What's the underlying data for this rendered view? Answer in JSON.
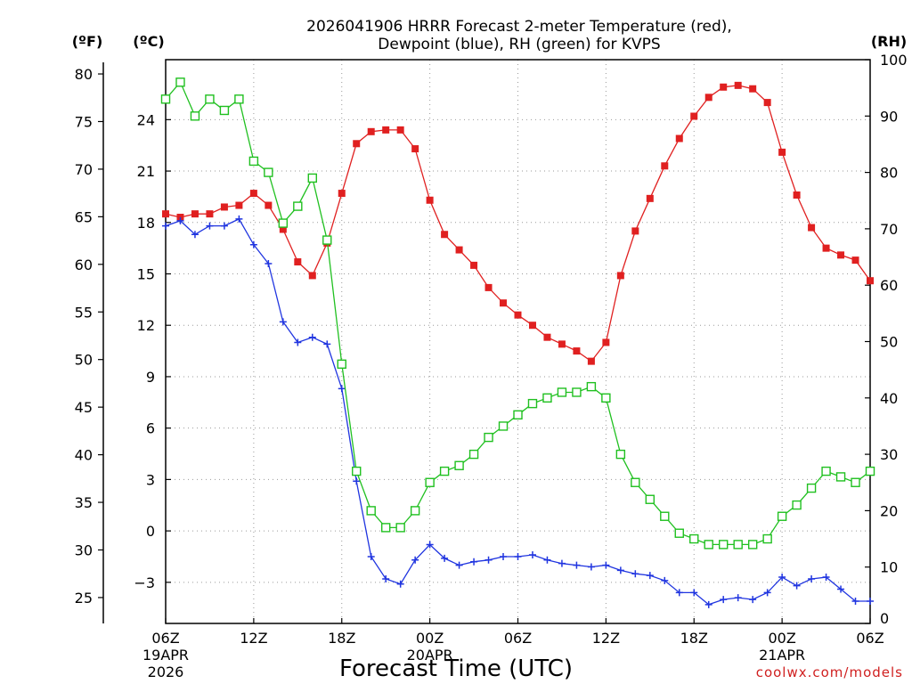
{
  "chart_data": {
    "type": "line",
    "title_line1": "2026041906 HRRR Forecast 2-meter Temperature (red),",
    "title_line2": "Dewpoint (blue), RH (green) for KVPS",
    "xlabel": "Forecast Time (UTC)",
    "credit": "coolwx.com/models",
    "units": {
      "fahrenheit": "(ºF)",
      "celsius": "(ºC)",
      "rh": "(RH)"
    },
    "x_range_hours": [
      0,
      48
    ],
    "celsius_range": [
      -5.4,
      27.5
    ],
    "rh_range": [
      0,
      100
    ],
    "x_ticks": [
      {
        "hour": 0,
        "label": "06Z",
        "sub1": "19APR",
        "sub2": "2026"
      },
      {
        "hour": 6,
        "label": "12Z",
        "sub1": "",
        "sub2": ""
      },
      {
        "hour": 12,
        "label": "18Z",
        "sub1": "",
        "sub2": ""
      },
      {
        "hour": 18,
        "label": "00Z",
        "sub1": "20APR",
        "sub2": ""
      },
      {
        "hour": 24,
        "label": "06Z",
        "sub1": "",
        "sub2": ""
      },
      {
        "hour": 30,
        "label": "12Z",
        "sub1": "",
        "sub2": ""
      },
      {
        "hour": 36,
        "label": "18Z",
        "sub1": "",
        "sub2": ""
      },
      {
        "hour": 42,
        "label": "00Z",
        "sub1": "21APR",
        "sub2": ""
      },
      {
        "hour": 48,
        "label": "06Z",
        "sub1": "",
        "sub2": ""
      }
    ],
    "celsius_ticks": [
      -3,
      0,
      3,
      6,
      9,
      12,
      15,
      18,
      21,
      24
    ],
    "celsius_tick_labels": [
      "−3",
      "0",
      "3",
      "6",
      "9",
      "12",
      "15",
      "18",
      "21",
      "24"
    ],
    "fahrenheit_ticks": [
      25,
      30,
      35,
      40,
      45,
      50,
      55,
      60,
      65,
      70,
      75,
      80
    ],
    "rh_ticks": [
      0,
      10,
      20,
      30,
      40,
      50,
      60,
      70,
      80,
      90,
      100
    ],
    "series": [
      {
        "name": "2-meter Temperature (°C)",
        "axis": "celsius",
        "color": "#e02020",
        "marker": "filled-square",
        "values": [
          18.5,
          18.3,
          18.5,
          18.5,
          18.9,
          19.0,
          19.7,
          19.0,
          17.6,
          15.7,
          14.9,
          16.8,
          19.7,
          22.6,
          23.3,
          23.4,
          23.4,
          22.3,
          19.3,
          17.3,
          16.4,
          15.5,
          14.2,
          13.3,
          12.6,
          12.0,
          11.3,
          10.9,
          10.5,
          9.9,
          11.0,
          14.9,
          17.5,
          19.4,
          21.3,
          22.9,
          24.2,
          25.3,
          25.9,
          26.0,
          25.8,
          25.0,
          22.1,
          19.6,
          17.7,
          16.5,
          16.1,
          15.8,
          14.6
        ]
      },
      {
        "name": "Dewpoint (°C)",
        "axis": "celsius",
        "color": "#2035e0",
        "marker": "plus",
        "values": [
          17.8,
          18.1,
          17.3,
          17.8,
          17.8,
          18.2,
          16.7,
          15.6,
          12.2,
          11.0,
          11.3,
          10.9,
          8.3,
          2.9,
          -1.5,
          -2.8,
          -3.1,
          -1.7,
          -0.8,
          -1.6,
          -2.0,
          -1.8,
          -1.7,
          -1.5,
          -1.5,
          -1.4,
          -1.7,
          -1.9,
          -2.0,
          -2.1,
          -2.0,
          -2.3,
          -2.5,
          -2.6,
          -2.9,
          -3.6,
          -3.6,
          -4.3,
          -4.0,
          -3.9,
          -4.0,
          -3.6,
          -2.7,
          -3.2,
          -2.8,
          -2.7,
          -3.4,
          -4.1,
          -4.1
        ]
      },
      {
        "name": "RH (%)",
        "axis": "rh",
        "color": "#20c020",
        "marker": "open-square",
        "values": [
          93,
          96,
          90,
          93,
          91,
          93,
          82,
          80,
          71,
          74,
          79,
          68,
          46,
          27,
          20,
          17,
          17,
          20,
          25,
          27,
          28,
          30,
          33,
          35,
          37,
          39,
          40,
          41,
          41,
          42,
          40,
          30,
          25,
          22,
          19,
          16,
          15,
          14,
          14,
          14,
          14,
          15,
          19,
          21,
          24,
          27,
          26,
          25,
          27
        ]
      }
    ]
  }
}
